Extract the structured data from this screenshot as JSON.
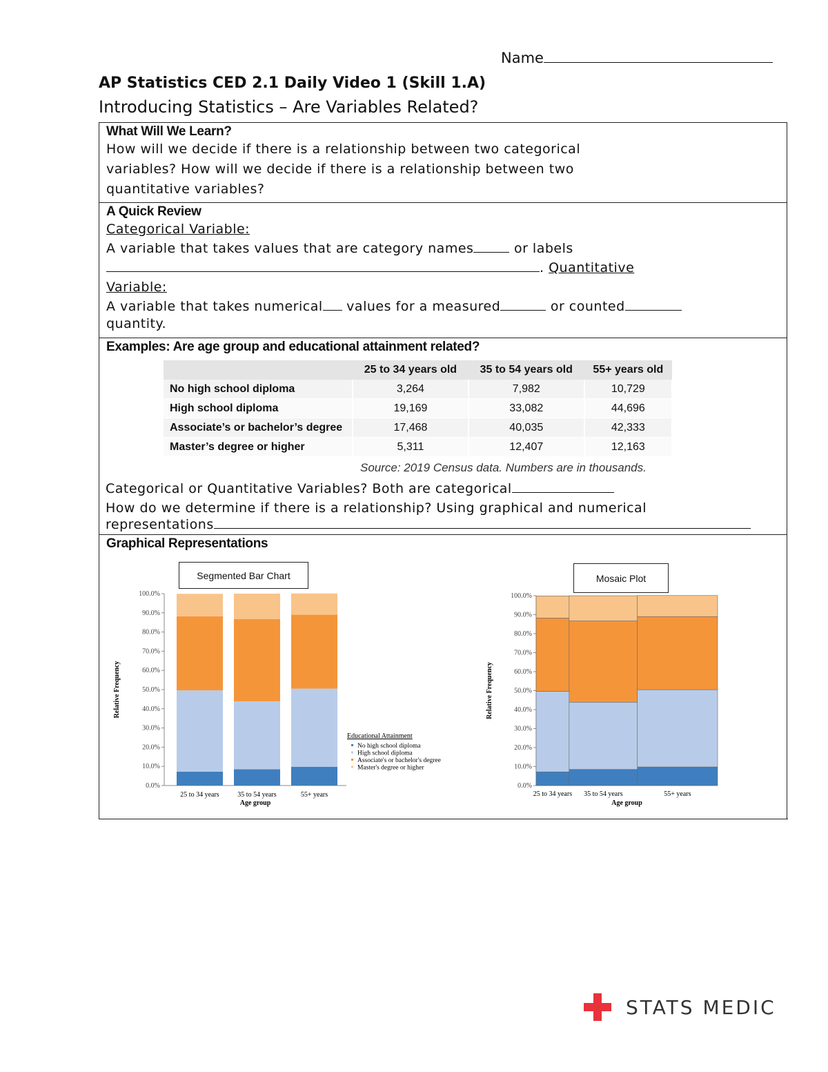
{
  "header": {
    "name_label": "Name",
    "title": "AP Statistics CED 2.1 Daily Video 1 (Skill 1.A)",
    "subtitle": "Introducing Statistics – Are Variables Related?"
  },
  "learn": {
    "heading": "What Will We Learn?",
    "lines": [
      "How will we decide if there is a relationship between two categorical",
      "variables? How will we decide if there is a relationship between two",
      "quantitative variables?"
    ]
  },
  "review": {
    "heading": "A Quick Review",
    "categorical_label": "Categorical  Variable:",
    "categorical_def_1": "A variable that takes values that are category names",
    "categorical_def_2": " or labels",
    "quantitative_label_1": "Quantitative ",
    "quantitative_label_2": "Variable:",
    "quant_def_1": "A variable that takes numerical",
    "quant_def_2": " values for a measured",
    "quant_def_3": " or counted",
    "quant_def_4": "quantity."
  },
  "examples": {
    "heading": "Examples: Are age group and educational attainment related?",
    "table": {
      "columns": [
        "",
        "25 to 34 years old",
        "35 to 54 years old",
        "55+ years old"
      ],
      "rows": [
        [
          "No high school diploma",
          "3,264",
          "7,982",
          "10,729"
        ],
        [
          "High school diploma",
          "19,169",
          "33,082",
          "44,696"
        ],
        [
          "Associate’s or bachelor’s degree",
          "17,468",
          "40,035",
          "42,333"
        ],
        [
          "Master’s degree or higher",
          "5,311",
          "12,407",
          "12,163"
        ]
      ]
    },
    "source": "Source: 2019 Census data. Numbers are in thousands.",
    "q1": "Categorical or Quantitative Variables? Both are categorical",
    "q2a": "How do we determine if there is a relationship? Using graphical and numerical",
    "q2b": "representations"
  },
  "graphical": {
    "heading": "Graphical Representations",
    "bar_label": "Segmented Bar Chart",
    "mosaic_label": "Mosaic Plot"
  },
  "chart_data": [
    {
      "type": "bar",
      "stacked": true,
      "title": "Segmented Bar Chart",
      "xlabel": "Age group",
      "ylabel": "Relative Frequency",
      "categories": [
        "25 to 34 years",
        "35 to 54 years",
        "55+ years"
      ],
      "yticks": [
        "0.0%",
        "10.0%",
        "20.0%",
        "30.0%",
        "40.0%",
        "50.0%",
        "60.0%",
        "70.0%",
        "80.0%",
        "90.0%",
        "100.0%"
      ],
      "ylim": [
        0,
        100
      ],
      "legend_title": "Educational Attainment",
      "legend_position": "right",
      "series": [
        {
          "name": "No high school diploma",
          "color": "#3f7fbf",
          "values": [
            7.2,
            8.5,
            9.8
          ]
        },
        {
          "name": "High school diploma",
          "color": "#b8cce9",
          "values": [
            42.4,
            35.4,
            40.7
          ]
        },
        {
          "name": "Associate's or bachelor's degree",
          "color": "#f5953a",
          "values": [
            38.6,
            42.8,
            38.5
          ]
        },
        {
          "name": "Master's degree or higher",
          "color": "#f8c48a",
          "values": [
            11.7,
            13.3,
            11.1
          ]
        }
      ]
    },
    {
      "type": "mosaic",
      "title": "Mosaic Plot",
      "xlabel": "Age group",
      "ylabel": "Relative Frequency",
      "categories": [
        "25 to 34 years",
        "35 to 54 years",
        "55+ years"
      ],
      "category_totals": [
        45212,
        93506,
        109921
      ],
      "yticks": [
        "0.0%",
        "10.0%",
        "20.0%",
        "30.0%",
        "40.0%",
        "50.0%",
        "60.0%",
        "70.0%",
        "80.0%",
        "90.0%",
        "100.0%"
      ],
      "ylim": [
        0,
        100
      ],
      "series": [
        {
          "name": "No high school diploma",
          "color": "#3f7fbf",
          "values": [
            7.2,
            8.5,
            9.8
          ]
        },
        {
          "name": "High school diploma",
          "color": "#b8cce9",
          "values": [
            42.4,
            35.4,
            40.7
          ]
        },
        {
          "name": "Associate's or bachelor's degree",
          "color": "#f5953a",
          "values": [
            38.6,
            42.8,
            38.5
          ]
        },
        {
          "name": "Master's degree or higher",
          "color": "#f8c48a",
          "values": [
            11.7,
            13.3,
            11.1
          ]
        }
      ]
    }
  ],
  "logo": {
    "text": "STATS MEDIC",
    "color": "#e8323c"
  }
}
